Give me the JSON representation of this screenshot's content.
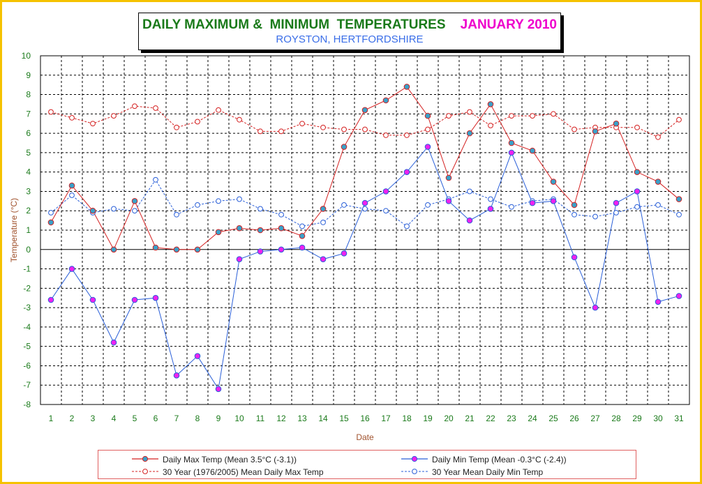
{
  "title": {
    "main": "DAILY MAXIMUM &  MINIMUM  TEMPERATURES",
    "month": "JANUARY 2010",
    "location": "ROYSTON, HERTFORDSHIRE"
  },
  "colors": {
    "max": "#d42020",
    "min": "#2a5fd8",
    "max_marker": "#3aa0c8",
    "min_marker": "#ee22ee",
    "tick_text": "#1a7a1a",
    "axis_label": "#a0522d",
    "frame": "#f5c200"
  },
  "chart_data": {
    "type": "line",
    "xlabel": "Date",
    "ylabel": "Temperature (°C)",
    "ylim": [
      -8,
      10
    ],
    "grid": true,
    "legend": "bottom",
    "x": [
      1,
      2,
      3,
      4,
      5,
      6,
      7,
      8,
      9,
      10,
      11,
      12,
      13,
      14,
      15,
      16,
      17,
      18,
      19,
      20,
      21,
      22,
      23,
      24,
      25,
      26,
      27,
      28,
      29,
      30,
      31
    ],
    "yticks": [
      -8,
      -7,
      -6,
      -5,
      -4,
      -3,
      -2,
      -1,
      0,
      1,
      2,
      3,
      4,
      5,
      6,
      7,
      8,
      9,
      10
    ],
    "series": [
      {
        "key": "max",
        "name": "Daily Max Temp (Mean 3.5°C (-3.1))",
        "values": [
          1.4,
          3.3,
          2.0,
          0.0,
          2.5,
          0.1,
          0.0,
          0.0,
          0.9,
          1.1,
          1.0,
          1.1,
          0.7,
          2.1,
          5.3,
          7.2,
          7.7,
          8.4,
          6.9,
          3.7,
          6.0,
          7.5,
          5.5,
          5.1,
          3.5,
          2.3,
          6.1,
          6.5,
          4.0,
          3.5,
          2.6
        ]
      },
      {
        "key": "min",
        "name": "Daily Min Temp (Mean -0.3°C (-2.4))",
        "values": [
          -2.6,
          -1.0,
          -2.6,
          -4.8,
          -2.6,
          -2.5,
          -6.5,
          -5.5,
          -7.2,
          -0.5,
          -0.1,
          0.0,
          0.1,
          -0.5,
          -0.2,
          2.4,
          3.0,
          4.0,
          5.3,
          2.5,
          1.5,
          2.1,
          5.0,
          2.4,
          2.5,
          -0.4,
          -3.0,
          2.4,
          3.0,
          -2.7,
          -2.4
        ]
      },
      {
        "key": "avgmax",
        "name": "30 Year (1976/2005) Mean Daily Max Temp",
        "values": [
          7.1,
          6.8,
          6.5,
          6.9,
          7.4,
          7.3,
          6.3,
          6.6,
          7.2,
          6.7,
          6.1,
          6.1,
          6.5,
          6.3,
          6.2,
          6.2,
          5.9,
          5.9,
          6.2,
          6.9,
          7.1,
          6.4,
          6.9,
          6.9,
          7.0,
          6.2,
          6.3,
          6.3,
          6.3,
          5.8,
          6.7
        ]
      },
      {
        "key": "avgmin",
        "name": "30 Year Mean Daily Min Temp",
        "values": [
          1.9,
          2.8,
          1.9,
          2.1,
          2.0,
          3.6,
          1.8,
          2.3,
          2.5,
          2.6,
          2.1,
          1.8,
          1.2,
          1.4,
          2.3,
          2.1,
          2.0,
          1.2,
          2.3,
          2.6,
          3.0,
          2.6,
          2.2,
          2.5,
          2.6,
          1.8,
          1.7,
          1.9,
          2.2,
          2.3,
          1.8
        ]
      }
    ]
  }
}
